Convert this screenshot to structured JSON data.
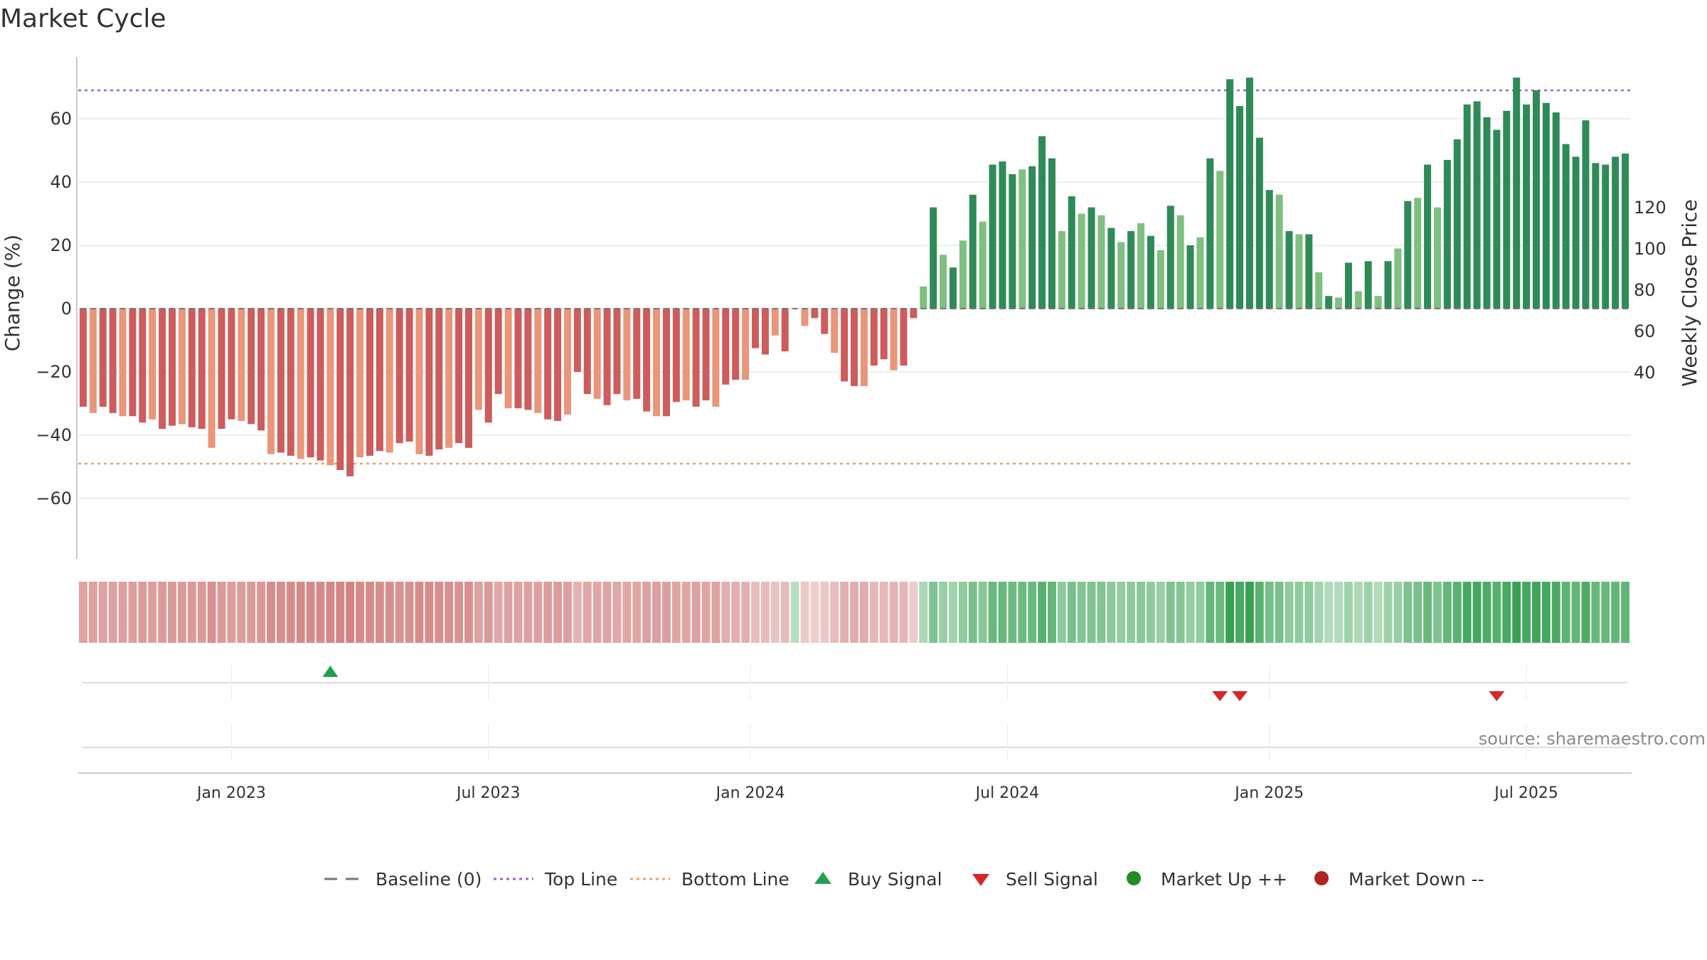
{
  "chart_data": {
    "type": "bar",
    "title": "Market Cycle",
    "ylabel_left": "Change (%)",
    "ylabel_right": "Weekly Close Price",
    "source_text": "source: sharemaestro.com",
    "y_ticks": [
      -60,
      -40,
      -20,
      0,
      20,
      40,
      60
    ],
    "y_right_ticks": [
      40,
      60,
      80,
      100,
      120
    ],
    "ylim": [
      -79,
      80
    ],
    "ylim_right": [
      28,
      123
    ],
    "top_line": 69,
    "bottom_line": -49,
    "x_tick_labels": [
      {
        "label": "Jan 2023",
        "week": 15
      },
      {
        "label": "Jul 2023",
        "week": 41
      },
      {
        "label": "Jan 2024",
        "week": 67.5
      },
      {
        "label": "Jul 2024",
        "week": 93.5
      },
      {
        "label": "Jan 2025",
        "week": 120
      },
      {
        "label": "Jul 2025",
        "week": 146
      }
    ],
    "values": [
      -31,
      -33,
      -31,
      -33,
      -34,
      -34,
      -36,
      -35,
      -38,
      -37,
      -36.5,
      -37.5,
      -38,
      -44,
      -38,
      -35,
      -35.5,
      -36.5,
      -38.5,
      -46,
      -45.5,
      -46.5,
      -47.5,
      -47,
      -48,
      -49.5,
      -51,
      -53,
      -47,
      -46.5,
      -45,
      -45.5,
      -42.5,
      -42,
      -46,
      -46.5,
      -44.5,
      -44,
      -42.5,
      -44,
      -32,
      -36,
      -27,
      -31.5,
      -31.5,
      -32,
      -33,
      -35,
      -35.5,
      -33.5,
      -20,
      -27,
      -28.5,
      -30.5,
      -27,
      -29,
      -28.5,
      -32.5,
      -34,
      -34,
      -29.5,
      -29,
      -31,
      -29,
      -31,
      -24,
      -22.5,
      -22.5,
      -12.5,
      -14.5,
      -8.5,
      -13.5,
      0,
      -5.5,
      -3,
      -8,
      -14,
      -23,
      -24.5,
      -24.5,
      -18,
      -16,
      -19.5,
      -18,
      -3,
      7,
      32,
      17,
      13,
      21.5,
      36,
      27.5,
      45.5,
      46.5,
      42.5,
      44,
      45,
      54.5,
      47.5,
      24.5,
      35.5,
      30,
      32,
      29.5,
      25.5,
      21,
      24.5,
      27,
      23,
      18.5,
      32.5,
      29.5,
      20,
      22.5,
      47.5,
      43.5,
      72.5,
      64,
      73,
      54,
      37.5,
      36,
      24.5,
      23.5,
      23.5,
      11.5,
      4,
      3.5,
      14.5,
      5.5,
      15,
      4,
      15,
      19,
      34,
      35,
      45.5,
      32,
      47,
      53.5,
      64.5,
      65.5,
      60.5,
      56.5,
      62.5,
      73,
      64.5,
      69,
      65,
      62,
      52,
      48,
      59.5,
      46,
      45.5,
      48,
      49
    ],
    "signals": {
      "buy_weeks": [
        25
      ],
      "sell_weeks": [
        115,
        117,
        143
      ]
    },
    "legend": [
      {
        "label": "Baseline (0)",
        "symbol": "dash",
        "color": "#777777"
      },
      {
        "label": "Top Line",
        "symbol": "dot",
        "color": "#9966cc"
      },
      {
        "label": "Bottom Line",
        "symbol": "dot",
        "color": "#f0a060"
      },
      {
        "label": "Buy Signal",
        "symbol": "triangle-up",
        "color": "#22a050"
      },
      {
        "label": "Sell Signal",
        "symbol": "triangle-down",
        "color": "#d62728"
      },
      {
        "label": "Market Up ++",
        "symbol": "circle",
        "color": "#228b22"
      },
      {
        "label": "Market Down --",
        "symbol": "circle",
        "color": "#b22222"
      }
    ],
    "colors": {
      "pos_dark": "#2e8b57",
      "pos_light": "#7fbf7f",
      "neg_dark": "#cd5c5c",
      "neg_light": "#e9967a",
      "top_line": "#9966cc",
      "bottom_line": "#f0a060"
    }
  }
}
